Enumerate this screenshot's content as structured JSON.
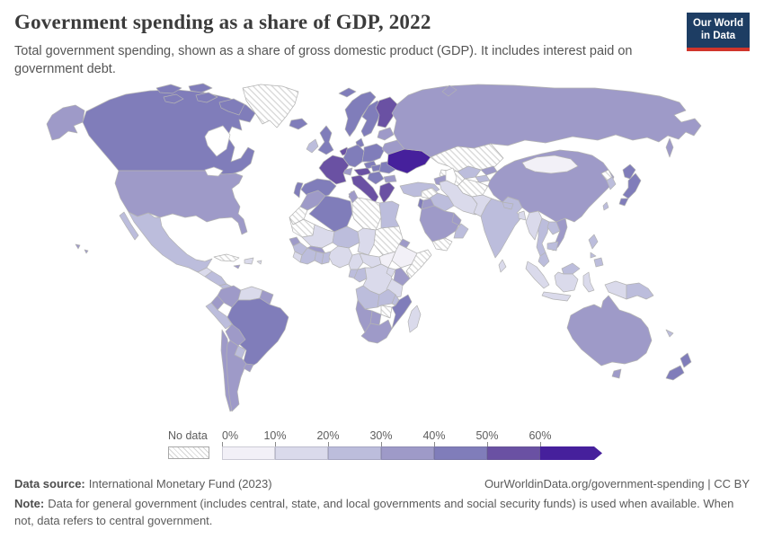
{
  "header": {
    "title": "Government spending as a share of GDP, 2022",
    "subtitle": "Total government spending, shown as a share of gross domestic product (GDP). It includes interest paid on government debt.",
    "logo": {
      "line1": "Our World",
      "line2": "in Data",
      "bg_color": "#1d3d63",
      "accent_color": "#d0352b"
    }
  },
  "legend": {
    "no_data_label": "No data",
    "tick_labels": [
      "0%",
      "10%",
      "20%",
      "30%",
      "40%",
      "50%",
      "60%"
    ],
    "bins": [
      {
        "label": "0-10%",
        "color": "#f2f0f7"
      },
      {
        "label": "10-20%",
        "color": "#dadaeb"
      },
      {
        "label": "20-30%",
        "color": "#bcbddc"
      },
      {
        "label": "30-40%",
        "color": "#9e9ac8"
      },
      {
        "label": "40-50%",
        "color": "#807dba"
      },
      {
        "label": "50-60%",
        "color": "#6a51a3"
      },
      {
        "label": "60%+",
        "color": "#46209c"
      }
    ]
  },
  "footer": {
    "source_label": "Data source:",
    "source_value": "International Monetary Fund (2023)",
    "rights": "OurWorldinData.org/government-spending | CC BY",
    "note_label": "Note:",
    "note_value": "Data for general government (includes central, state, and local governments and social security funds) is used when available. When not, data refers to central government."
  },
  "chart_data": {
    "type": "choropleth",
    "title": "Government spending as a share of GDP, 2022",
    "unit": "% of GDP",
    "no_data_pattern": "diagonal-hatch",
    "legend_position": "bottom",
    "bin_colors": {
      "0-10%": "#f2f0f7",
      "10-20%": "#dadaeb",
      "20-30%": "#bcbddc",
      "30-40%": "#9e9ac8",
      "40-50%": "#807dba",
      "50-60%": "#6a51a3",
      "60%+": "#46209c"
    },
    "regions": {
      "Canada": "40-50%",
      "United States": "30-40%",
      "Mexico": "20-30%",
      "Guatemala": "10-20%",
      "Honduras-Nicaragua": "20-30%",
      "Costa Rica-Panama": "20-30%",
      "Cuba": "No data",
      "Hispaniola": "10-20%",
      "Jamaica": "30-40%",
      "Puerto Rico": "10-20%",
      "Colombia": "30-40%",
      "Venezuela": "10-20%",
      "Guianas": "30-40%",
      "Ecuador": "30-40%",
      "Peru": "20-30%",
      "Brazil": "40-50%",
      "Bolivia": "30-40%",
      "Paraguay": "20-30%",
      "Chile": "30-40%",
      "Argentina": "30-40%",
      "Uruguay": "30-40%",
      "Greenland": "No data",
      "Iceland": "40-50%",
      "Norway": "40-50%",
      "Sweden": "40-50%",
      "Finland": "50-60%",
      "Denmark": "40-50%",
      "United Kingdom": "40-50%",
      "Ireland": "20-30%",
      "France": "50-60%",
      "Spain": "40-50%",
      "Portugal": "40-50%",
      "Benelux": "50-60%",
      "Germany": "40-50%",
      "Poland": "40-50%",
      "Czechia": "40-50%",
      "Austria": "50-60%",
      "Switzerland": "30-40%",
      "Italy": "50-60%",
      "Hungary": "40-50%",
      "Romania": "40-50%",
      "Western Balkans": "40-50%",
      "Bulgaria": "30-40%",
      "Greece": "50-60%",
      "Ukraine": "60%+",
      "Belarus": "30-40%",
      "Baltics": "30-40%",
      "Turkey": "20-30%",
      "Russia": "30-40%",
      "Kazakhstan": "No data",
      "Uzbekistan": "20-30%",
      "Turkmenistan": "No data",
      "Kyrgyzstan": "30-40%",
      "Tajikistan": "20-30%",
      "Afghanistan": "No data",
      "Caucasus": "30-40%",
      "Syria": "No data",
      "Iraq": "20-30%",
      "Iran": "10-20%",
      "Israel": "40-50%",
      "Jordan": "30-40%",
      "Saudi Arabia": "30-40%",
      "Yemen": "No data",
      "Oman": "20-30%",
      "Gulf States": "30-40%",
      "Morocco": "30-40%",
      "Western Sahara": "No data",
      "Algeria": "40-50%",
      "Tunisia": "30-40%",
      "Libya": "No data",
      "Egypt": "20-30%",
      "Mauritania": "No data",
      "Mali": "10-20%",
      "Niger": "20-30%",
      "Chad": "10-20%",
      "Sudan": "No data",
      "Eritrea": "30-40%",
      "Ethiopia": "0-10%",
      "Somalia": "No data",
      "Senegal": "30-40%",
      "Guinea": "20-30%",
      "Sierra Leone-Liberia": "10-20%",
      "Ivory Coast": "20-30%",
      "Burkina Faso": "30-40%",
      "Ghana": "20-30%",
      "Togo-Benin": "20-30%",
      "Nigeria": "10-20%",
      "Cameroon": "10-20%",
      "Central African Republic": "10-20%",
      "South Sudan": "0-10%",
      "Gabon": "20-30%",
      "Congo": "20-30%",
      "DR Congo": "10-20%",
      "Uganda": "10-20%",
      "Kenya": "30-40%",
      "Tanzania": "10-20%",
      "Angola": "20-30%",
      "Zambia": "20-30%",
      "Malawi": "20-30%",
      "Mozambique": "40-50%",
      "Zimbabwe": "No data",
      "Botswana": "30-40%",
      "Namibia": "30-40%",
      "South Africa": "30-40%",
      "Madagascar": "10-20%",
      "Pakistan": "10-20%",
      "India": "20-30%",
      "Nepal": "20-30%",
      "Bangladesh": "10-20%",
      "Sri Lanka": "10-20%",
      "China": "30-40%",
      "Mongolia": "0-10%",
      "Taiwan": "20-30%",
      "North Korea": "No data",
      "South Korea": "20-30%",
      "Japan": "40-50%",
      "Myanmar": "10-20%",
      "Thailand": "20-30%",
      "Laos": "20-30%",
      "Vietnam": "30-40%",
      "Cambodia": "20-30%",
      "Malaysia": "20-30%",
      "Indonesia": "10-20%",
      "Papua New Guinea": "20-30%",
      "Philippines": "20-30%",
      "Australia": "30-40%",
      "New Zealand": "40-50%",
      "New Caledonia": "20-30%"
    }
  }
}
